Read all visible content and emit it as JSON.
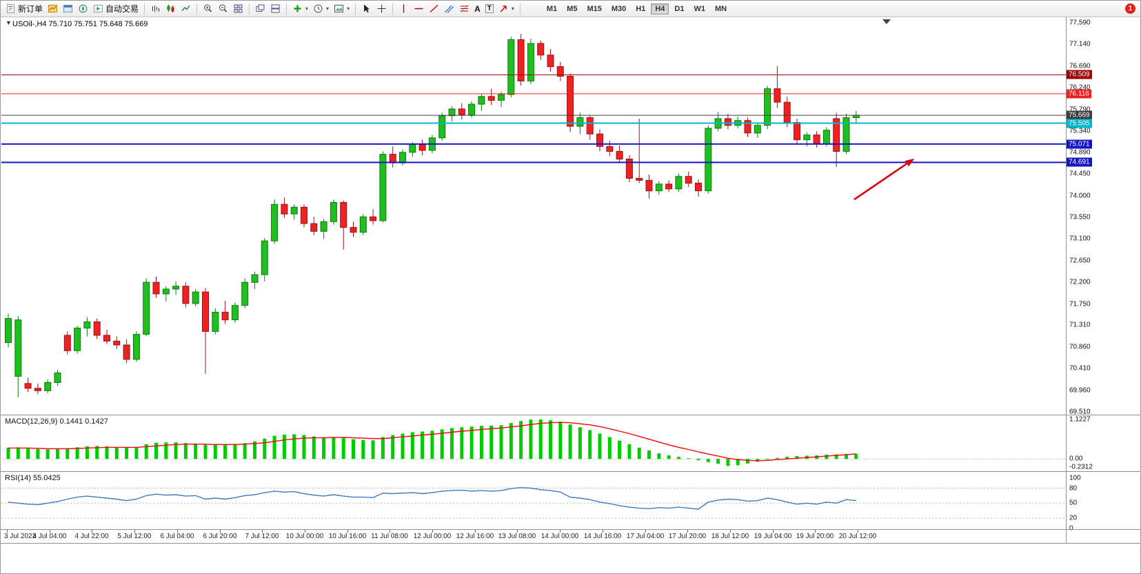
{
  "toolbar": {
    "new_order_label": "新订单",
    "auto_trading_label": "自动交易",
    "text_tool_label": "A",
    "textbox_tool_label": "T",
    "timeframes": [
      "M1",
      "M5",
      "M15",
      "M30",
      "H1",
      "H4",
      "D1",
      "W1",
      "MN"
    ],
    "active_timeframe": "H4",
    "notification_count": "1"
  },
  "chart": {
    "title": "USOil-,H4 75.710 75.751 75.648 75.669"
  },
  "price_axis": {
    "labels": [
      "77.590",
      "77.140",
      "76.690",
      "76.240",
      "75.790",
      "75.340",
      "74.890",
      "74.450",
      "74.000",
      "73.550",
      "73.100",
      "72.650",
      "72.200",
      "71.750",
      "71.310",
      "70.860",
      "70.410",
      "69.960",
      "69.510"
    ]
  },
  "badges": [
    {
      "text": "76.509",
      "price": 76.509,
      "color": "#a00000"
    },
    {
      "text": "76.116",
      "price": 76.116,
      "color": "#f02020"
    },
    {
      "text": "75.669",
      "price": 75.669,
      "color": "#3c3c3c"
    },
    {
      "text": "75.505",
      "price": 75.505,
      "color": "#00b7cc"
    },
    {
      "text": "75.071",
      "price": 75.071,
      "color": "#1414c8"
    },
    {
      "text": "74.691",
      "price": 74.691,
      "color": "#1414c8"
    }
  ],
  "macd_panel": {
    "label": "MACD(12,26,9) 0.1441 0.1427",
    "axis": [
      "1.1227",
      "0.00",
      "-0.2312"
    ]
  },
  "rsi_panel": {
    "label": "RSI(14) 55.0425",
    "axis": [
      "100",
      "80",
      "50",
      "20",
      "0"
    ]
  },
  "time_axis": [
    "3 Jul 2023",
    "4 Jul 04:00",
    "4 Jul 22:00",
    "5 Jul 12:00",
    "6 Jul 04:00",
    "6 Jul 20:00",
    "7 Jul 12:00",
    "10 Jul 00:00",
    "10 Jul 16:00",
    "11 Jul 08:00",
    "12 Jul 00:00",
    "12 Jul 16:00",
    "13 Jul 08:00",
    "14 Jul 00:00",
    "14 Jul 16:00",
    "17 Jul 04:00",
    "17 Jul 20:00",
    "18 Jul 12:00",
    "19 Jul 04:00",
    "19 Jul 20:00",
    "20 Jul 12:00"
  ],
  "chart_data": {
    "type": "candlestick",
    "symbol": "USOil-",
    "timeframe": "H4",
    "ohlc_current": {
      "open": 75.71,
      "high": 75.751,
      "low": 75.648,
      "close": 75.669
    },
    "price_range": [
      69.51,
      77.59
    ],
    "up_color": "#1fbf1f",
    "up_stroke": "#0d7a0d",
    "down_color": "#ee2222",
    "down_stroke": "#a01010",
    "candles": [
      [
        70.95,
        71.55,
        70.85,
        71.45
      ],
      [
        70.25,
        71.5,
        69.82,
        71.42
      ],
      [
        70.1,
        70.22,
        69.92,
        70.0
      ],
      [
        70.0,
        70.1,
        69.88,
        69.95
      ],
      [
        69.95,
        70.18,
        69.9,
        70.12
      ],
      [
        70.12,
        70.38,
        70.05,
        70.32
      ],
      [
        71.1,
        71.18,
        70.7,
        70.78
      ],
      [
        70.78,
        71.3,
        70.72,
        71.25
      ],
      [
        71.25,
        71.48,
        71.08,
        71.38
      ],
      [
        71.38,
        71.45,
        71.02,
        71.1
      ],
      [
        71.1,
        71.22,
        70.92,
        70.98
      ],
      [
        70.98,
        71.08,
        70.82,
        70.9
      ],
      [
        70.9,
        71.02,
        70.52,
        70.6
      ],
      [
        70.6,
        71.18,
        70.55,
        71.12
      ],
      [
        71.12,
        72.28,
        71.08,
        72.2
      ],
      [
        72.2,
        72.32,
        71.88,
        71.96
      ],
      [
        71.96,
        72.12,
        71.8,
        72.06
      ],
      [
        72.06,
        72.22,
        71.94,
        72.12
      ],
      [
        72.12,
        72.2,
        71.68,
        71.76
      ],
      [
        71.76,
        72.06,
        71.7,
        72.0
      ],
      [
        72.0,
        72.08,
        70.3,
        71.18
      ],
      [
        71.18,
        71.66,
        71.12,
        71.58
      ],
      [
        71.58,
        71.82,
        71.34,
        71.42
      ],
      [
        71.42,
        71.78,
        71.36,
        71.72
      ],
      [
        71.72,
        72.28,
        71.66,
        72.2
      ],
      [
        72.2,
        72.42,
        72.06,
        72.36
      ],
      [
        72.36,
        73.12,
        72.22,
        73.06
      ],
      [
        73.06,
        73.92,
        73.0,
        73.82
      ],
      [
        73.82,
        73.96,
        73.54,
        73.62
      ],
      [
        73.62,
        73.82,
        73.5,
        73.76
      ],
      [
        73.76,
        73.82,
        73.34,
        73.42
      ],
      [
        73.42,
        73.56,
        73.18,
        73.26
      ],
      [
        73.26,
        73.52,
        73.1,
        73.46
      ],
      [
        73.46,
        73.92,
        73.4,
        73.86
      ],
      [
        73.86,
        73.9,
        72.88,
        73.34
      ],
      [
        73.34,
        73.46,
        73.14,
        73.24
      ],
      [
        73.24,
        73.62,
        73.18,
        73.56
      ],
      [
        73.56,
        73.72,
        73.4,
        73.48
      ],
      [
        73.48,
        74.92,
        73.44,
        74.86
      ],
      [
        74.86,
        75.02,
        74.58,
        74.68
      ],
      [
        74.68,
        74.96,
        74.62,
        74.9
      ],
      [
        74.9,
        75.12,
        74.8,
        75.06
      ],
      [
        75.06,
        75.16,
        74.84,
        74.94
      ],
      [
        74.94,
        75.26,
        74.88,
        75.2
      ],
      [
        75.2,
        75.72,
        75.14,
        75.66
      ],
      [
        75.66,
        75.86,
        75.54,
        75.8
      ],
      [
        75.8,
        75.92,
        75.58,
        75.68
      ],
      [
        75.68,
        75.96,
        75.62,
        75.9
      ],
      [
        75.9,
        76.12,
        75.76,
        76.06
      ],
      [
        76.06,
        76.22,
        75.88,
        75.98
      ],
      [
        75.98,
        76.16,
        75.84,
        76.1
      ],
      [
        76.1,
        77.3,
        76.04,
        77.24
      ],
      [
        77.24,
        77.36,
        76.28,
        76.38
      ],
      [
        76.38,
        77.26,
        76.32,
        77.16
      ],
      [
        77.16,
        77.22,
        76.82,
        76.92
      ],
      [
        76.92,
        77.04,
        76.58,
        76.68
      ],
      [
        76.68,
        76.78,
        76.38,
        76.48
      ],
      [
        76.48,
        76.54,
        75.32,
        75.44
      ],
      [
        75.44,
        75.72,
        75.28,
        75.62
      ],
      [
        75.62,
        75.66,
        75.16,
        75.28
      ],
      [
        75.28,
        75.38,
        74.92,
        75.02
      ],
      [
        75.02,
        75.14,
        74.82,
        74.92
      ],
      [
        74.92,
        75.04,
        74.68,
        74.76
      ],
      [
        74.76,
        74.84,
        74.28,
        74.36
      ],
      [
        74.36,
        75.6,
        74.26,
        74.32
      ],
      [
        74.32,
        74.44,
        73.94,
        74.1
      ],
      [
        74.1,
        74.3,
        74.02,
        74.24
      ],
      [
        74.24,
        74.32,
        74.08,
        74.14
      ],
      [
        74.14,
        74.46,
        74.08,
        74.4
      ],
      [
        74.4,
        74.5,
        74.18,
        74.26
      ],
      [
        74.26,
        74.34,
        73.98,
        74.1
      ],
      [
        74.1,
        75.46,
        74.04,
        75.4
      ],
      [
        75.4,
        75.74,
        75.34,
        75.6
      ],
      [
        75.6,
        75.7,
        75.38,
        75.46
      ],
      [
        75.46,
        75.64,
        75.4,
        75.56
      ],
      [
        75.56,
        75.62,
        75.22,
        75.3
      ],
      [
        75.3,
        75.52,
        75.2,
        75.46
      ],
      [
        75.46,
        76.28,
        75.38,
        76.22
      ],
      [
        76.22,
        76.69,
        75.82,
        75.94
      ],
      [
        75.94,
        76.06,
        75.42,
        75.52
      ],
      [
        75.52,
        75.6,
        75.08,
        75.16
      ],
      [
        75.16,
        75.32,
        75.02,
        75.26
      ],
      [
        75.26,
        75.34,
        75.0,
        75.08
      ],
      [
        75.08,
        75.42,
        75.02,
        75.36
      ],
      [
        75.6,
        75.72,
        74.6,
        74.92
      ],
      [
        74.92,
        75.7,
        74.86,
        75.62
      ],
      [
        75.62,
        75.76,
        75.52,
        75.669
      ]
    ],
    "hlines": [
      {
        "price": 76.509,
        "color": "#a00000",
        "width": 1
      },
      {
        "price": 76.116,
        "color": "#f02020",
        "width": 1
      },
      {
        "price": 75.669,
        "color": "#3c3c3c",
        "width": 1
      },
      {
        "price": 75.505,
        "color": "#00b7cc",
        "width": 2
      },
      {
        "price": 75.071,
        "color": "#1414c8",
        "width": 2
      },
      {
        "price": 74.691,
        "color": "#1414c8",
        "width": 2
      }
    ],
    "arrow": {
      "from": {
        "bar": 85.8,
        "price": 73.92
      },
      "to": {
        "bar": 91.9,
        "price": 74.77
      },
      "color": "#e00000"
    },
    "macd": {
      "scale": [
        -0.2312,
        1.1227
      ],
      "current": [
        0.1441,
        0.1427
      ],
      "histogram_color": "#00cc00",
      "signal_color": "#ff0000",
      "values": [
        0.32,
        0.33,
        0.3,
        0.28,
        0.27,
        0.28,
        0.3,
        0.33,
        0.36,
        0.37,
        0.36,
        0.34,
        0.32,
        0.34,
        0.42,
        0.46,
        0.47,
        0.47,
        0.45,
        0.44,
        0.4,
        0.4,
        0.41,
        0.42,
        0.45,
        0.5,
        0.58,
        0.66,
        0.69,
        0.7,
        0.68,
        0.64,
        0.61,
        0.62,
        0.6,
        0.56,
        0.54,
        0.53,
        0.62,
        0.68,
        0.72,
        0.76,
        0.78,
        0.8,
        0.84,
        0.88,
        0.9,
        0.92,
        0.94,
        0.95,
        0.96,
        1.02,
        1.08,
        1.12,
        1.12,
        1.1,
        1.06,
        0.98,
        0.9,
        0.82,
        0.72,
        0.62,
        0.52,
        0.42,
        0.32,
        0.24,
        0.16,
        0.1,
        0.06,
        0.02,
        -0.04,
        -0.09,
        -0.14,
        -0.2,
        -0.18,
        -0.13,
        -0.08,
        -0.02,
        0.03,
        0.06,
        0.08,
        0.09,
        0.1,
        0.12,
        0.13,
        0.14,
        0.1441
      ],
      "signal": [
        0.31,
        0.31,
        0.31,
        0.3,
        0.29,
        0.29,
        0.29,
        0.3,
        0.31,
        0.32,
        0.33,
        0.33,
        0.33,
        0.33,
        0.35,
        0.37,
        0.39,
        0.41,
        0.42,
        0.42,
        0.42,
        0.41,
        0.41,
        0.41,
        0.42,
        0.44,
        0.46,
        0.5,
        0.54,
        0.57,
        0.59,
        0.6,
        0.6,
        0.61,
        0.61,
        0.6,
        0.59,
        0.58,
        0.58,
        0.6,
        0.63,
        0.65,
        0.68,
        0.7,
        0.73,
        0.76,
        0.79,
        0.81,
        0.84,
        0.86,
        0.88,
        0.91,
        0.94,
        0.98,
        1.01,
        1.03,
        1.04,
        1.03,
        1.0,
        0.97,
        0.92,
        0.86,
        0.79,
        0.72,
        0.64,
        0.56,
        0.48,
        0.4,
        0.33,
        0.27,
        0.2,
        0.14,
        0.08,
        0.02,
        -0.02,
        -0.04,
        -0.05,
        -0.04,
        -0.02,
        0.0,
        0.02,
        0.04,
        0.06,
        0.08,
        0.1,
        0.12,
        0.1427
      ]
    },
    "rsi": {
      "scale": [
        0,
        100
      ],
      "levels": [
        80,
        50,
        20
      ],
      "current": 55.0425,
      "line_color": "#3b7bbf",
      "values": [
        52,
        50,
        48,
        47,
        50,
        53,
        58,
        62,
        64,
        62,
        60,
        58,
        55,
        58,
        65,
        68,
        66,
        67,
        64,
        65,
        58,
        60,
        58,
        61,
        65,
        67,
        71,
        74,
        72,
        73,
        69,
        66,
        64,
        67,
        64,
        62,
        62,
        61,
        70,
        69,
        70,
        71,
        69,
        71,
        74,
        75,
        76,
        74,
        75,
        74,
        75,
        79,
        81,
        80,
        77,
        75,
        72,
        62,
        60,
        57,
        52,
        49,
        45,
        42,
        40,
        39,
        41,
        40,
        42,
        40,
        38,
        52,
        56,
        58,
        57,
        54,
        55,
        60,
        57,
        52,
        48,
        50,
        48,
        52,
        50,
        57,
        55.04
      ]
    }
  }
}
